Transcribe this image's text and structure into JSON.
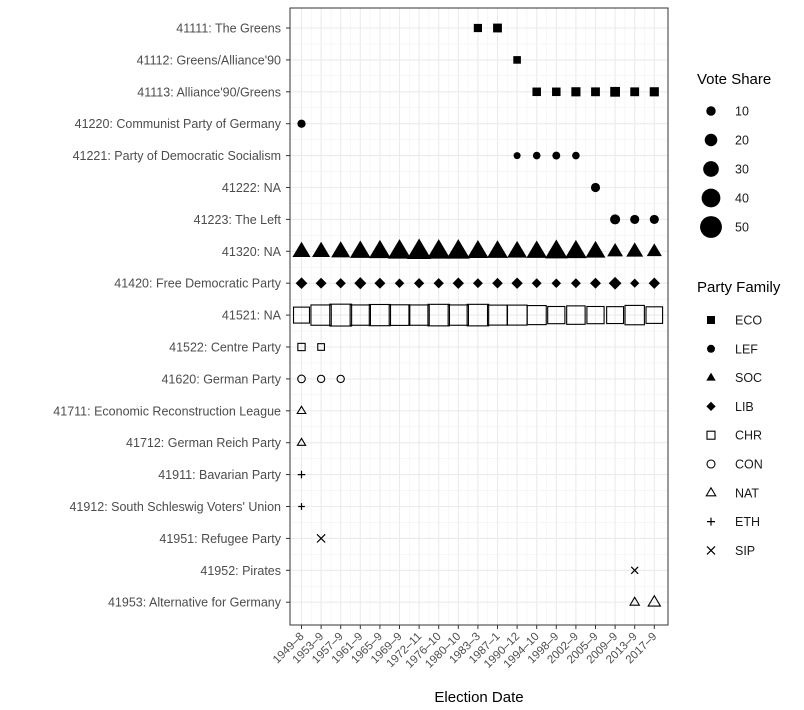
{
  "chart_data": {
    "type": "scatter",
    "xlabel": "Election Date",
    "ylabel": "",
    "x_categories": [
      "1949–8",
      "1953–9",
      "1957–9",
      "1961–9",
      "1965–9",
      "1969–9",
      "1972–11",
      "1976–10",
      "1980–10",
      "1983–3",
      "1987–1",
      "1990–12",
      "1994–10",
      "1998–9",
      "2002–9",
      "2005–9",
      "2009–9",
      "2013–9",
      "2017–9"
    ],
    "y_categories": [
      "41111: The Greens",
      "41112: Greens/Alliance'90",
      "41113: Alliance'90/Greens",
      "41220: Communist Party of Germany",
      "41221: Party of Democratic Socialism",
      "41222: NA",
      "41223: The Left",
      "41320: NA",
      "41420: Free Democratic Party",
      "41521: NA",
      "41522: Centre Party",
      "41620: German Party",
      "41711: Economic Reconstruction League",
      "41712: German Reich Party",
      "41911: Bavarian Party",
      "41912: South Schleswig Voters' Union",
      "41951: Refugee Party",
      "41952: Pirates",
      "41953: Alternative for Germany"
    ],
    "family_legend": {
      "title": "Party Family",
      "items": [
        {
          "label": "ECO",
          "shape": "square-filled"
        },
        {
          "label": "LEF",
          "shape": "circle-filled"
        },
        {
          "label": "SOC",
          "shape": "triangle-filled"
        },
        {
          "label": "LIB",
          "shape": "diamond-filled"
        },
        {
          "label": "CHR",
          "shape": "square-open"
        },
        {
          "label": "CON",
          "shape": "circle-open"
        },
        {
          "label": "NAT",
          "shape": "triangle-open"
        },
        {
          "label": "ETH",
          "shape": "plus"
        },
        {
          "label": "SIP",
          "shape": "cross"
        }
      ]
    },
    "size_legend": {
      "title": "Vote Share",
      "values": [
        10,
        20,
        30,
        40,
        50
      ]
    },
    "series": [
      {
        "party": "41111: The Greens",
        "family": "ECO",
        "points": [
          [
            "1983–3",
            6
          ],
          [
            "1987–1",
            8
          ]
        ]
      },
      {
        "party": "41112: Greens/Alliance'90",
        "family": "ECO",
        "points": [
          [
            "1990–12",
            4
          ]
        ]
      },
      {
        "party": "41113: Alliance'90/Greens",
        "family": "ECO",
        "points": [
          [
            "1994–10",
            7
          ],
          [
            "1998–9",
            7
          ],
          [
            "2002–9",
            9
          ],
          [
            "2005–9",
            8
          ],
          [
            "2009–9",
            11
          ],
          [
            "2013–9",
            8
          ],
          [
            "2017–9",
            9
          ]
        ]
      },
      {
        "party": "41220: Communist Party of Germany",
        "family": "LEF",
        "points": [
          [
            "1949–8",
            6
          ]
        ]
      },
      {
        "party": "41221: Party of Democratic Socialism",
        "family": "LEF",
        "points": [
          [
            "1990–12",
            2
          ],
          [
            "1994–10",
            4
          ],
          [
            "1998–9",
            5
          ],
          [
            "2002–9",
            4
          ]
        ]
      },
      {
        "party": "41222: NA",
        "family": "LEF",
        "points": [
          [
            "2005–9",
            9
          ]
        ]
      },
      {
        "party": "41223: The Left",
        "family": "LEF",
        "points": [
          [
            "2009–9",
            12
          ],
          [
            "2013–9",
            9
          ],
          [
            "2017–9",
            9
          ]
        ]
      },
      {
        "party": "41320: NA",
        "family": "SOC",
        "points": [
          [
            "1949–8",
            29
          ],
          [
            "1953–9",
            29
          ],
          [
            "1957–9",
            32
          ],
          [
            "1961–9",
            36
          ],
          [
            "1965–9",
            39
          ],
          [
            "1969–9",
            43
          ],
          [
            "1972–11",
            46
          ],
          [
            "1976–10",
            43
          ],
          [
            "1980–10",
            43
          ],
          [
            "1983–3",
            38
          ],
          [
            "1987–1",
            37
          ],
          [
            "1990–12",
            34
          ],
          [
            "1994–10",
            36
          ],
          [
            "1998–9",
            41
          ],
          [
            "2002–9",
            39
          ],
          [
            "2005–9",
            34
          ],
          [
            "2009–9",
            23
          ],
          [
            "2013–9",
            26
          ],
          [
            "2017–9",
            21
          ]
        ]
      },
      {
        "party": "41420: Free Democratic Party",
        "family": "LIB",
        "points": [
          [
            "1949–8",
            12
          ],
          [
            "1953–9",
            10
          ],
          [
            "1957–9",
            8
          ],
          [
            "1961–9",
            13
          ],
          [
            "1965–9",
            10
          ],
          [
            "1969–9",
            6
          ],
          [
            "1972–11",
            8
          ],
          [
            "1976–10",
            8
          ],
          [
            "1980–10",
            11
          ],
          [
            "1983–3",
            7
          ],
          [
            "1987–1",
            9
          ],
          [
            "1990–12",
            11
          ],
          [
            "1994–10",
            7
          ],
          [
            "1998–9",
            6
          ],
          [
            "2002–9",
            7
          ],
          [
            "2005–9",
            10
          ],
          [
            "2009–9",
            15
          ],
          [
            "2013–9",
            5
          ],
          [
            "2017–9",
            11
          ]
        ]
      },
      {
        "party": "41521: NA",
        "family": "CHR",
        "points": [
          [
            "1949–8",
            31
          ],
          [
            "1953–9",
            45
          ],
          [
            "1957–9",
            50
          ],
          [
            "1961–9",
            45
          ],
          [
            "1965–9",
            48
          ],
          [
            "1969–9",
            46
          ],
          [
            "1972–11",
            45
          ],
          [
            "1976–10",
            49
          ],
          [
            "1980–10",
            45
          ],
          [
            "1983–3",
            49
          ],
          [
            "1987–1",
            44
          ],
          [
            "1990–12",
            44
          ],
          [
            "1994–10",
            41
          ],
          [
            "1998–9",
            35
          ],
          [
            "2002–9",
            39
          ],
          [
            "2005–9",
            35
          ],
          [
            "2009–9",
            34
          ],
          [
            "2013–9",
            42
          ],
          [
            "2017–9",
            33
          ]
        ]
      },
      {
        "party": "41522: Centre Party",
        "family": "CHR",
        "points": [
          [
            "1949–8",
            3
          ],
          [
            "1953–9",
            1
          ]
        ]
      },
      {
        "party": "41620: German Party",
        "family": "CON",
        "points": [
          [
            "1949–8",
            4
          ],
          [
            "1953–9",
            3
          ],
          [
            "1957–9",
            3
          ]
        ]
      },
      {
        "party": "41711: Economic Reconstruction League",
        "family": "NAT",
        "points": [
          [
            "1949–8",
            3
          ]
        ]
      },
      {
        "party": "41712: German Reich Party",
        "family": "NAT",
        "points": [
          [
            "1949–8",
            2
          ]
        ]
      },
      {
        "party": "41911: Bavarian Party",
        "family": "ETH",
        "points": [
          [
            "1949–8",
            4
          ]
        ]
      },
      {
        "party": "41912: South Schleswig Voters' Union",
        "family": "ETH",
        "points": [
          [
            "1949–8",
            1
          ]
        ]
      },
      {
        "party": "41951: Refugee Party",
        "family": "SIP",
        "points": [
          [
            "1953–9",
            6
          ]
        ]
      },
      {
        "party": "41952: Pirates",
        "family": "SIP",
        "points": [
          [
            "2013–9",
            2
          ]
        ]
      },
      {
        "party": "41953: Alternative for Germany",
        "family": "NAT",
        "points": [
          [
            "2013–9",
            5
          ],
          [
            "2017–9",
            13
          ]
        ]
      }
    ],
    "grid": true,
    "legend_position": "right"
  }
}
